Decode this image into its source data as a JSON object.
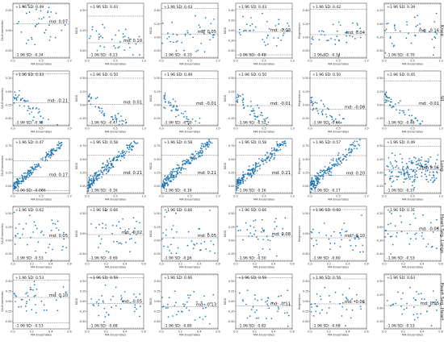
{
  "chart_data": {
    "type": "scatter",
    "layout": "grid",
    "row_labels": [
      "Knee",
      "SII",
      "Lung",
      "Heart Seg. Lungs",
      "Heart Seg. Heart"
    ],
    "y_labels": [
      "SA-Ensembles",
      "MCD",
      "MCD",
      "MCD",
      "Regression",
      ""
    ],
    "x_label": "MA-Ensembles",
    "colors": {
      "point": "#1f77b4",
      "line": "#555555"
    },
    "grid": false,
    "rows": [
      {
        "name": "Knee",
        "xlim": [
          0,
          1.0
        ],
        "xticks": [
          "0.0",
          "0.5",
          "1.0"
        ],
        "panels": [
          {
            "upper": 0.49,
            "lower": -0.34,
            "md": 0.07,
            "yticks": [
              "0.20",
              "0.00",
              "-0.20"
            ]
          },
          {
            "upper": 0.43,
            "lower": -0.23,
            "md": 0.1,
            "yticks": [
              "0.50",
              "0.25",
              "0.00"
            ]
          },
          {
            "upper": 0.43,
            "lower": -0.33,
            "md": 0.05,
            "yticks": [
              "0.40",
              "0.20",
              "0.00",
              "-0.20"
            ]
          },
          {
            "upper": 0.43,
            "lower": -0.48,
            "md": -0.03,
            "yticks": [
              "0.40",
              "0.20",
              "0.00",
              "-0.20",
              "-0.40"
            ]
          },
          {
            "upper": 0.42,
            "lower": -0.34,
            "md": 0.04,
            "yticks": [
              "0.40",
              "0.20",
              "0.00",
              "-0.20"
            ]
          },
          {
            "upper": 0.39,
            "lower": -0.7,
            "md": -0.16,
            "yticks": [
              "0.25",
              "0.00",
              "-0.25",
              "-0.50"
            ]
          }
        ]
      },
      {
        "name": "SII",
        "xlim": [
          0,
          1.0
        ],
        "xticks": [
          "0.0",
          "0.5",
          "1.0"
        ],
        "panels": [
          {
            "upper": 0.33,
            "lower": -0.75,
            "md": -0.21,
            "yticks": [
              "0.25",
              "0.00",
              "-0.25",
              "-0.50"
            ]
          },
          {
            "upper": 0.5,
            "lower": -0.47,
            "md": 0.01,
            "yticks": [
              "0.50",
              "0.25",
              "0.00",
              "-0.25"
            ]
          },
          {
            "upper": 0.49,
            "lower": -0.5,
            "md": -0.01,
            "yticks": [
              "0.50",
              "0.25",
              "0.00",
              "-0.25"
            ]
          },
          {
            "upper": 0.5,
            "lower": -0.52,
            "md": -0.01,
            "yticks": [
              "0.50",
              "0.25",
              "0.00",
              "-0.25"
            ]
          },
          {
            "upper": 0.5,
            "lower": -0.66,
            "md": -0.08,
            "yticks": [
              "0.50",
              "0.25",
              "0.00",
              "-0.25"
            ]
          },
          {
            "upper": 0.45,
            "lower": -0.48,
            "md": -0.01,
            "yticks": [
              "0.50",
              "0.25",
              "0.00",
              "-0.25"
            ]
          }
        ]
      },
      {
        "name": "Lung",
        "xlim": [
          0,
          1.0
        ],
        "xticks": [
          "0.0",
          "0.5",
          "1.0"
        ],
        "panels": [
          {
            "upper": 0.47,
            "lower": -0.086,
            "md": 0.17,
            "yticks": [
              "0.75",
              "0.50",
              "0.25",
              "0.00"
            ]
          },
          {
            "upper": 0.58,
            "lower": -0.16,
            "md": 0.21,
            "yticks": [
              "0.75",
              "0.50",
              "0.25",
              "0.00"
            ]
          },
          {
            "upper": 0.58,
            "lower": -0.16,
            "md": 0.21,
            "yticks": [
              "0.75",
              "0.50",
              "0.25",
              "0.00"
            ]
          },
          {
            "upper": 0.58,
            "lower": -0.16,
            "md": 0.21,
            "yticks": [
              "0.75",
              "0.50",
              "0.25",
              "0.00"
            ]
          },
          {
            "upper": 0.57,
            "lower": -0.17,
            "md": 0.2,
            "yticks": [
              "0.75",
              "0.50",
              "0.25",
              "0.00"
            ]
          },
          {
            "upper": 0.49,
            "lower": -0.37,
            "md": 0.06,
            "yticks": [
              "0.50",
              "0.25",
              "0.00",
              "-0.25"
            ]
          }
        ]
      },
      {
        "name": "Heart Seg. Lungs",
        "xlim": [
          0,
          0.6
        ],
        "xticks": [
          "0.0",
          "0.2",
          "0.4",
          "0.6"
        ],
        "panels": [
          {
            "upper": 0.62,
            "lower": -0.53,
            "md": 0.05,
            "yticks": [
              "0.50",
              "0.25",
              "0.00",
              "-0.25"
            ]
          },
          {
            "upper": 0.66,
            "lower": -0.69,
            "md": -0.02,
            "yticks": [
              "0.50",
              "0.00",
              "-0.50"
            ]
          },
          {
            "upper": 0.66,
            "lower": -0.56,
            "md": 0.05,
            "yticks": [
              "0.50",
              "0.25",
              "0.00",
              "-0.25"
            ]
          },
          {
            "upper": 0.66,
            "lower": -0.5,
            "md": 0.08,
            "yticks": [
              "0.50",
              "0.25",
              "0.00",
              "-0.25"
            ]
          },
          {
            "upper": 0.6,
            "lower": -0.8,
            "md": -0.1,
            "yticks": [
              "0.50",
              "0.00",
              "-0.50"
            ]
          },
          {
            "upper": 0.31,
            "lower": -0.53,
            "md": -0.06,
            "yticks": [
              "0.20",
              "0.00",
              "-0.20",
              "-0.40"
            ]
          }
        ]
      },
      {
        "name": "Heart Seg. Heart",
        "xlim": [
          0,
          0.6
        ],
        "xticks": [
          "0.0",
          "0.2",
          "0.4",
          "0.6"
        ],
        "panels": [
          {
            "upper": 0.53,
            "lower": -0.53,
            "md": 0.1,
            "yticks": [
              "0.50",
              "0.25",
              "0.00",
              "-0.25",
              "-0.50"
            ]
          },
          {
            "upper": 0.59,
            "lower": -0.68,
            "md": -0.05,
            "yticks": [
              "0.50",
              "0.25",
              "0.00",
              "-0.25",
              "-0.50"
            ]
          },
          {
            "upper": 0.66,
            "lower": -0.8,
            "md": -0.13,
            "yticks": [
              "0.50",
              "0.25",
              "0.00",
              "-0.25",
              "-0.50"
            ]
          },
          {
            "upper": 0.59,
            "lower": -0.82,
            "md": -0.11,
            "yticks": [
              "0.50",
              "0.25",
              "0.00",
              "-0.25",
              "-0.50"
            ]
          },
          {
            "upper": 0.56,
            "lower": -0.68,
            "md": -0.06,
            "yticks": [
              "0.50",
              "0.25",
              "0.00",
              "-0.25",
              "-0.50"
            ]
          },
          {
            "upper": 0.63,
            "lower": -0.53,
            "md": 0.05,
            "yticks": [
              "0.50",
              "0.25",
              "0.00",
              "-0.25"
            ]
          }
        ]
      }
    ]
  }
}
